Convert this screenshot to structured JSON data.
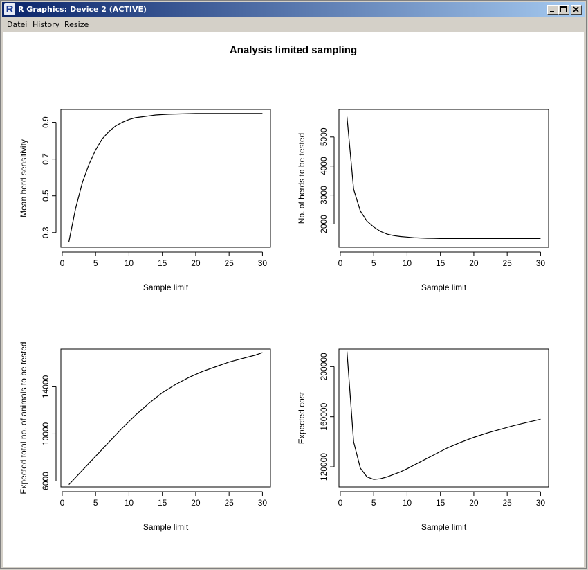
{
  "window": {
    "title": "R Graphics: Device 2 (ACTIVE)",
    "icon": "r-logo-icon",
    "icon_letter": "R",
    "controls": [
      "minimize-icon",
      "maximize-icon",
      "close-icon"
    ]
  },
  "menubar": {
    "items": [
      "Datei",
      "History",
      "Resize"
    ]
  },
  "plot": {
    "title": "Analysis limited sampling"
  },
  "chart_data": [
    {
      "type": "line",
      "title": "",
      "xlabel": "Sample limit",
      "ylabel": "Mean herd sensitivity",
      "xlim": [
        0,
        30
      ],
      "ylim": [
        0.22,
        0.97
      ],
      "x_ticks": [
        0,
        5,
        10,
        15,
        20,
        25,
        30
      ],
      "y_ticks": [
        0.3,
        0.5,
        0.7,
        0.9
      ],
      "y_tick_labels": [
        "0.3",
        "0.5",
        "0.7",
        "0.9"
      ],
      "x": [
        1,
        2,
        3,
        4,
        5,
        6,
        7,
        8,
        9,
        10,
        11,
        12,
        13,
        14,
        15,
        16,
        17,
        18,
        19,
        20,
        21,
        22,
        23,
        24,
        25,
        26,
        27,
        28,
        29,
        30
      ],
      "y": [
        0.25,
        0.43,
        0.57,
        0.67,
        0.75,
        0.81,
        0.85,
        0.88,
        0.9,
        0.915,
        0.925,
        0.93,
        0.935,
        0.94,
        0.942,
        0.944,
        0.945,
        0.946,
        0.947,
        0.948,
        0.948,
        0.948,
        0.948,
        0.948,
        0.948,
        0.948,
        0.948,
        0.948,
        0.948,
        0.948
      ]
    },
    {
      "type": "line",
      "title": "",
      "xlabel": "Sample limit",
      "ylabel": "No. of herds to be tested",
      "xlim": [
        0,
        30
      ],
      "ylim": [
        1200,
        5950
      ],
      "x_ticks": [
        0,
        5,
        10,
        15,
        20,
        25,
        30
      ],
      "y_ticks": [
        2000,
        3000,
        4000,
        5000
      ],
      "y_tick_labels": [
        "2000",
        "3000",
        "4000",
        "5000"
      ],
      "x": [
        1,
        2,
        3,
        4,
        5,
        6,
        7,
        8,
        9,
        10,
        11,
        12,
        13,
        14,
        15,
        16,
        17,
        18,
        19,
        20,
        21,
        22,
        23,
        24,
        25,
        26,
        27,
        28,
        29,
        30
      ],
      "y": [
        5700,
        3200,
        2450,
        2100,
        1900,
        1750,
        1650,
        1600,
        1570,
        1550,
        1530,
        1520,
        1510,
        1505,
        1500,
        1500,
        1500,
        1500,
        1500,
        1500,
        1500,
        1500,
        1500,
        1500,
        1500,
        1500,
        1500,
        1500,
        1500,
        1500
      ]
    },
    {
      "type": "line",
      "title": "",
      "xlabel": "Sample limit",
      "ylabel": "Expected total no. of animals to be tested",
      "xlim": [
        0,
        30
      ],
      "ylim": [
        5500,
        17200
      ],
      "x_ticks": [
        0,
        5,
        10,
        15,
        20,
        25,
        30
      ],
      "y_ticks": [
        6000,
        10000,
        14000
      ],
      "y_tick_labels": [
        "6000",
        "10000",
        "14000"
      ],
      "x": [
        1,
        3,
        5,
        7,
        9,
        11,
        13,
        15,
        17,
        19,
        21,
        23,
        25,
        27,
        29,
        30
      ],
      "y": [
        5700,
        6900,
        8100,
        9300,
        10500,
        11600,
        12600,
        13500,
        14200,
        14800,
        15300,
        15700,
        16100,
        16400,
        16700,
        16900
      ]
    },
    {
      "type": "line",
      "title": "",
      "xlabel": "Sample limit",
      "ylabel": "Expected cost",
      "xlim": [
        0,
        30
      ],
      "ylim": [
        104000,
        214000
      ],
      "x_ticks": [
        0,
        5,
        10,
        15,
        20,
        25,
        30
      ],
      "y_ticks": [
        120000,
        160000,
        200000
      ],
      "y_tick_labels": [
        "120000",
        "160000",
        "200000"
      ],
      "x": [
        1,
        2,
        3,
        4,
        5,
        6,
        7,
        8,
        9,
        10,
        12,
        14,
        16,
        18,
        20,
        22,
        24,
        26,
        28,
        30
      ],
      "y": [
        212000,
        140000,
        119000,
        112000,
        110000,
        110500,
        112000,
        114000,
        116000,
        118500,
        124000,
        129500,
        135000,
        139500,
        143500,
        147000,
        150000,
        153000,
        155500,
        158000
      ]
    }
  ]
}
